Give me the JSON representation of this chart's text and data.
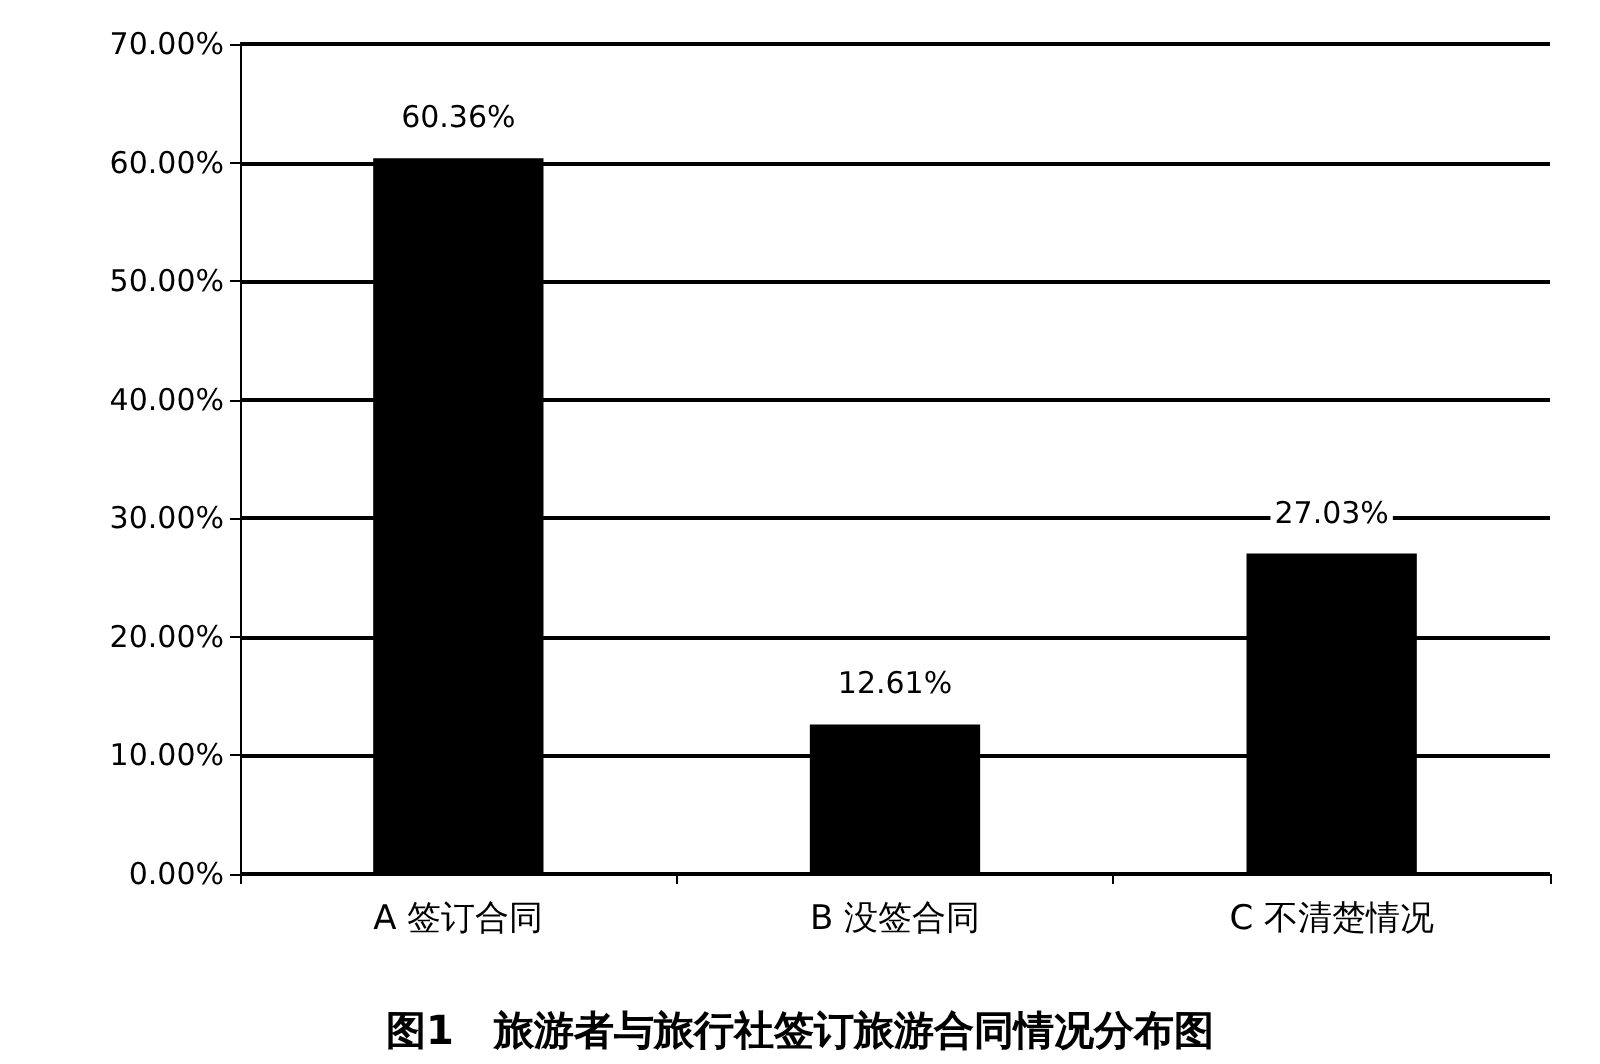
{
  "chart_data": {
    "type": "bar",
    "title": "图1　旅游者与旅行社签订旅游合同情况分布图",
    "categories": [
      "A 签订合同",
      "B 没签合同",
      "C 不清楚情况"
    ],
    "values": [
      60.36,
      12.61,
      27.03
    ],
    "value_labels": [
      "60.36%",
      "12.61%",
      "27.03%"
    ],
    "color": "#000000",
    "ylim": [
      0,
      70
    ],
    "yticks": [
      {
        "value": 0,
        "label": "0.00%"
      },
      {
        "value": 10,
        "label": "10.00%"
      },
      {
        "value": 20,
        "label": "20.00%"
      },
      {
        "value": 30,
        "label": "30.00%"
      },
      {
        "value": 40,
        "label": "40.00%"
      },
      {
        "value": 50,
        "label": "50.00%"
      },
      {
        "value": 60,
        "label": "60.00%"
      },
      {
        "value": 70,
        "label": "70.00%"
      }
    ],
    "grid": "y"
  }
}
